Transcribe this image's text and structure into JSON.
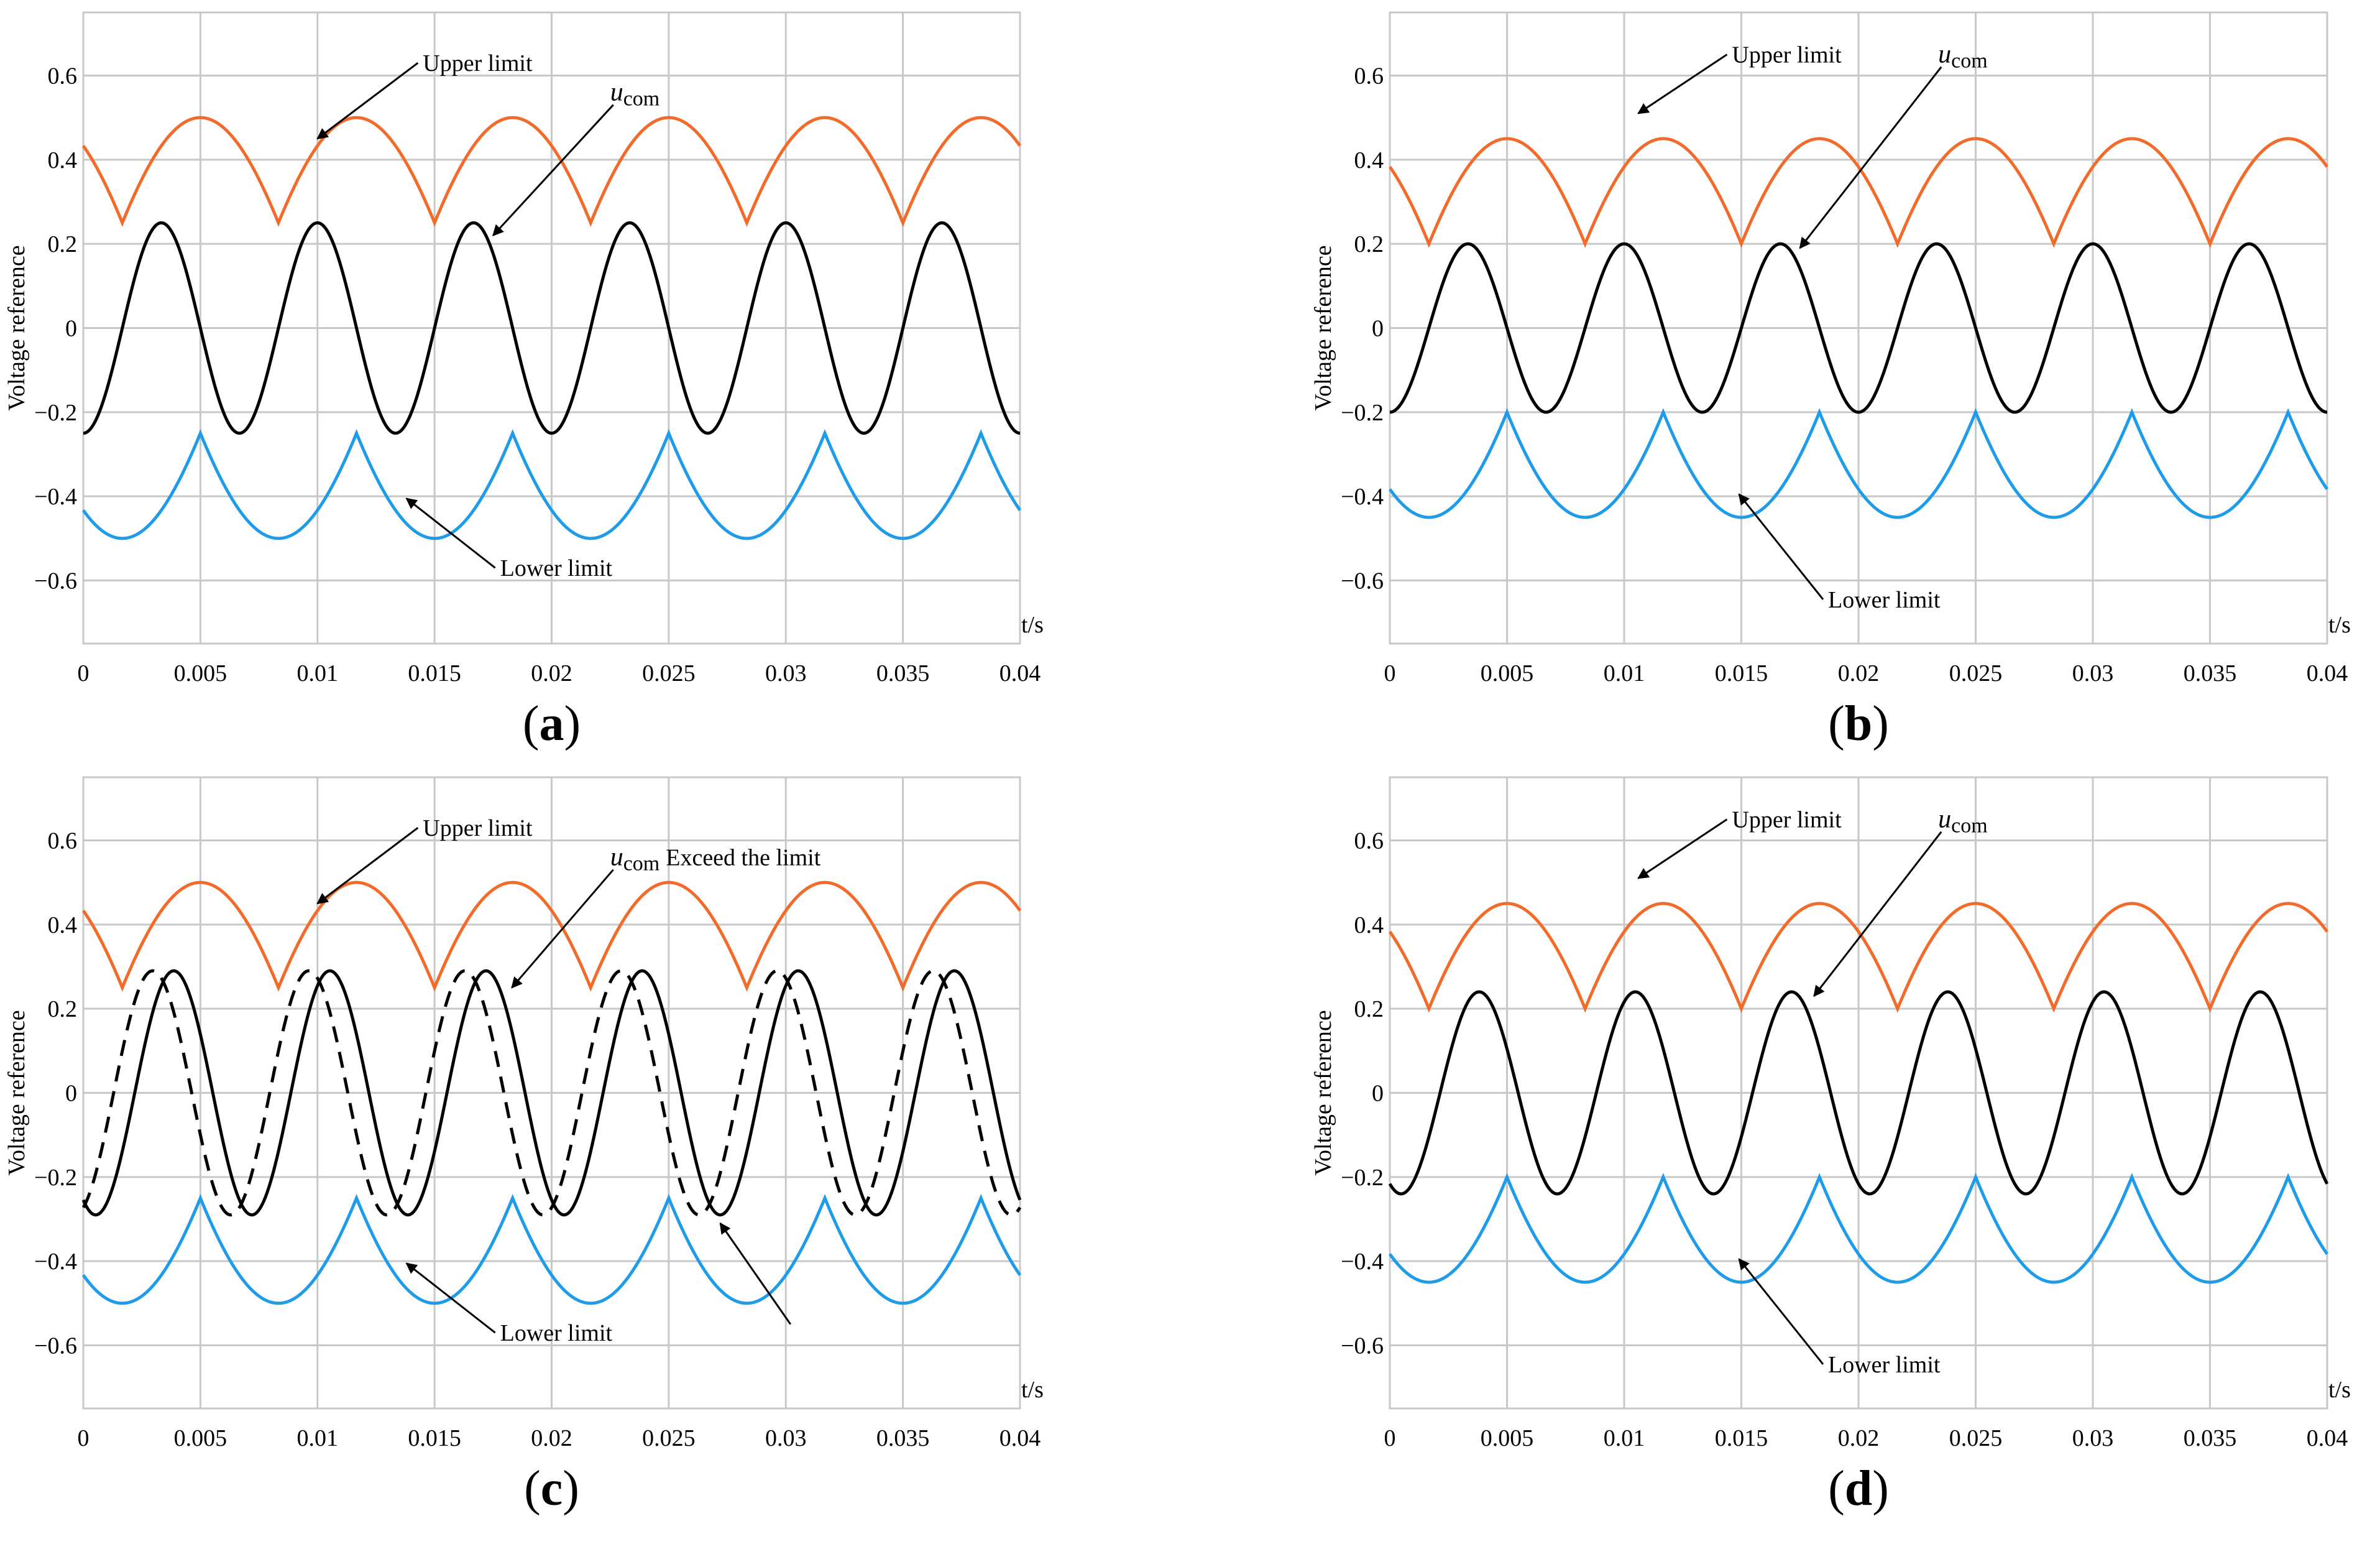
{
  "colors": {
    "upper": "#f26b2a",
    "lower": "#1e9be9",
    "ucom": "#000000",
    "grid": "#c8c8c8"
  },
  "annotations": {
    "upper": "Upper limit",
    "lower": "Lower limit",
    "u_letter": "u",
    "u_sub": "com",
    "exceed": "Exceed the limit"
  },
  "chart_data": [
    {
      "id": "a",
      "type": "line",
      "label": "a",
      "xlabel": "t/s",
      "ylabel": "Voltage reference",
      "xlim": [
        0,
        0.04
      ],
      "ylim": [
        -0.75,
        0.75
      ],
      "xticks": [
        "0",
        "0.005",
        "0.01",
        "0.015",
        "0.02",
        "0.025",
        "0.03",
        "0.035",
        "0.04"
      ],
      "yticks": [
        "0.6",
        "0.4",
        "0.2",
        "0",
        "−0.2",
        "−0.4",
        "−0.6"
      ],
      "fundamental_hz": 50,
      "offset": 0.25,
      "ucom_amplitude": 0.25,
      "ucom_mode": "sine",
      "annotations": [
        {
          "key": "upper",
          "text": "Upper limit",
          "tx": 0.0145,
          "ty": 0.63,
          "px": 0.01,
          "py": 0.45
        },
        {
          "key": "ucom",
          "text": "u_com",
          "tx": 0.0225,
          "ty": 0.56,
          "px": 0.0175,
          "py": 0.22
        },
        {
          "key": "lower",
          "text": "Lower limit",
          "tx": 0.0178,
          "ty": -0.57,
          "px": 0.0138,
          "py": -0.405
        }
      ]
    },
    {
      "id": "b",
      "type": "line",
      "label": "b",
      "xlabel": "t/s",
      "ylabel": "Voltage reference",
      "xlim": [
        0,
        0.04
      ],
      "ylim": [
        -0.75,
        0.75
      ],
      "xticks": [
        "0",
        "0.005",
        "0.01",
        "0.015",
        "0.02",
        "0.025",
        "0.03",
        "0.035",
        "0.04"
      ],
      "yticks": [
        "0.6",
        "0.4",
        "0.2",
        "0",
        "−0.2",
        "−0.4",
        "−0.6"
      ],
      "fundamental_hz": 50,
      "offset": 0.2,
      "ucom_amplitude": 0.2,
      "ucom_mode": "sine",
      "annotations": [
        {
          "key": "upper",
          "text": "Upper limit",
          "tx": 0.0146,
          "ty": 0.65,
          "px": 0.0106,
          "py": 0.51
        },
        {
          "key": "ucom",
          "text": "u_com",
          "tx": 0.0234,
          "ty": 0.65,
          "px": 0.0175,
          "py": 0.19
        },
        {
          "key": "lower",
          "text": "Lower limit",
          "tx": 0.0187,
          "ty": -0.645,
          "px": 0.0149,
          "py": -0.395
        }
      ]
    },
    {
      "id": "c",
      "type": "line",
      "label": "c",
      "xlabel": "t/s",
      "ylabel": "Voltage reference",
      "xlim": [
        0,
        0.04
      ],
      "ylim": [
        -0.75,
        0.75
      ],
      "xticks": [
        "0",
        "0.005",
        "0.01",
        "0.015",
        "0.02",
        "0.025",
        "0.03",
        "0.035",
        "0.04"
      ],
      "yticks": [
        "0.6",
        "0.4",
        "0.2",
        "0",
        "−0.2",
        "−0.4",
        "−0.6"
      ],
      "fundamental_hz": 50,
      "offset": 0.25,
      "ucom_amplitude": 0.29,
      "ucom_mode": "exceed",
      "annotations": [
        {
          "key": "upper",
          "text": "Upper limit",
          "tx": 0.0145,
          "ty": 0.63,
          "px": 0.01,
          "py": 0.45
        },
        {
          "key": "exceed",
          "text": "u_com Exceed the limit",
          "tx": 0.0225,
          "ty": 0.56,
          "px": 0.0183,
          "py": 0.25
        },
        {
          "key": "lower",
          "text": "Lower limit",
          "tx": 0.0178,
          "ty": -0.57,
          "px": 0.0138,
          "py": -0.405
        }
      ],
      "extra_arrow": {
        "tx": 0.0302,
        "ty": -0.55,
        "px": 0.0272,
        "py": -0.31
      }
    },
    {
      "id": "d",
      "type": "line",
      "label": "d",
      "xlabel": "t/s",
      "ylabel": "Voltage reference",
      "xlim": [
        0,
        0.04
      ],
      "ylim": [
        -0.75,
        0.75
      ],
      "xticks": [
        "0",
        "0.005",
        "0.01",
        "0.015",
        "0.02",
        "0.025",
        "0.03",
        "0.035",
        "0.04"
      ],
      "yticks": [
        "0.6",
        "0.4",
        "0.2",
        "0",
        "−0.2",
        "−0.4",
        "−0.6"
      ],
      "fundamental_hz": 50,
      "offset": 0.2,
      "ucom_amplitude": 0.24,
      "ucom_mode": "clipped",
      "annotations": [
        {
          "key": "upper",
          "text": "Upper limit",
          "tx": 0.0146,
          "ty": 0.65,
          "px": 0.0106,
          "py": 0.51
        },
        {
          "key": "ucom",
          "text": "u_com",
          "tx": 0.0234,
          "ty": 0.65,
          "px": 0.0181,
          "py": 0.23
        },
        {
          "key": "lower",
          "text": "Lower limit",
          "tx": 0.0187,
          "ty": -0.645,
          "px": 0.0149,
          "py": -0.395
        }
      ]
    }
  ]
}
